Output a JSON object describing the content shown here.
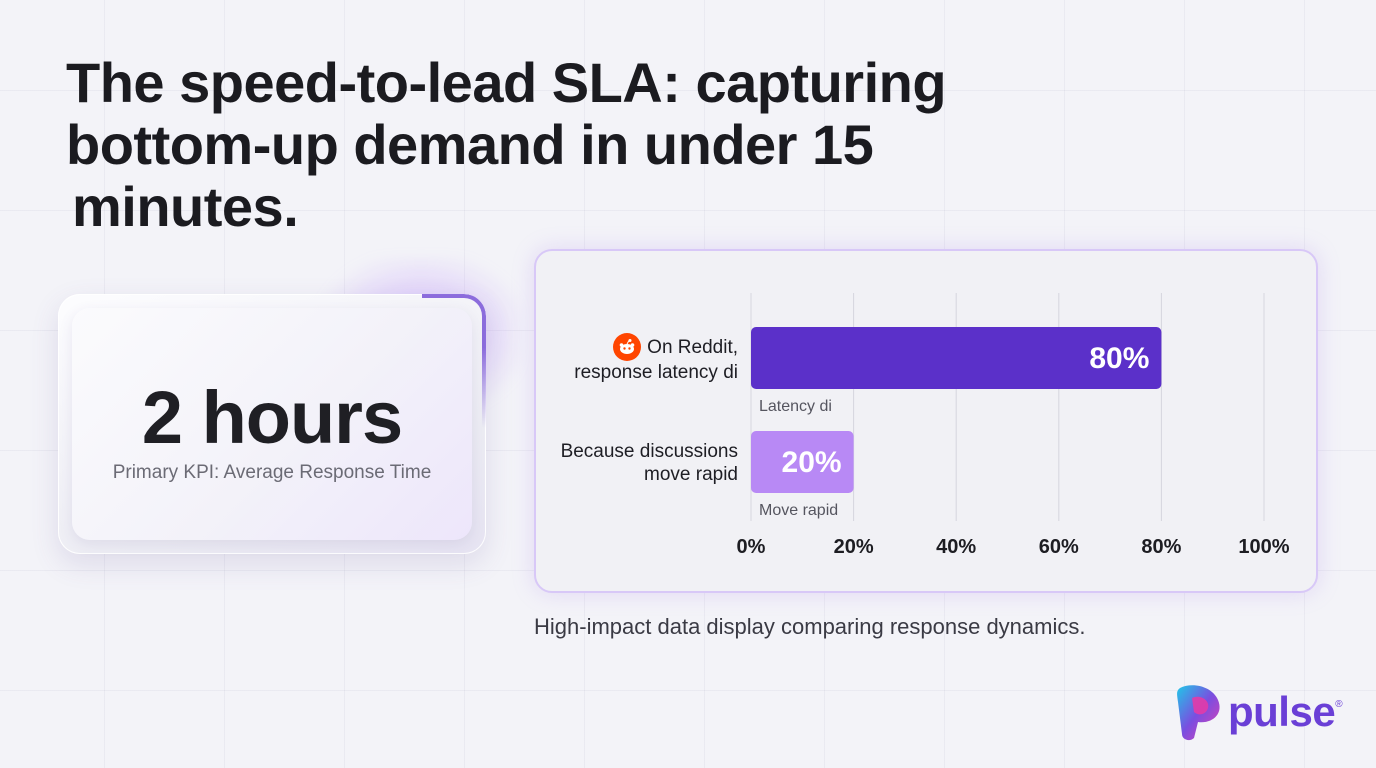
{
  "title": {
    "line1": "The speed-to-lead SLA: capturing",
    "line2": "bottom-up demand in under 15",
    "line3": "minutes."
  },
  "kpi": {
    "value": "2 hours",
    "label": "Primary KPI: Average Response Time"
  },
  "chart_data": {
    "type": "bar",
    "orientation": "horizontal",
    "categories": [
      "On Reddit, response latency di",
      "Because discussions move rapid"
    ],
    "category_lines": [
      [
        "On Reddit,",
        "response latency di"
      ],
      [
        "Because discussions",
        "move rapid"
      ]
    ],
    "values": [
      80,
      20
    ],
    "value_labels": [
      "80%",
      "20%"
    ],
    "sub_labels": [
      "Latency di",
      "Move rapid"
    ],
    "colors": [
      "#5b30c9",
      "#b889f5"
    ],
    "xlim": [
      0,
      100
    ],
    "xticks": [
      "0%",
      "20%",
      "40%",
      "60%",
      "80%",
      "100%"
    ],
    "grid": true,
    "icons": [
      "reddit-icon",
      ""
    ]
  },
  "caption": "High-impact data display comparing response dynamics.",
  "logo": {
    "text": "pulse",
    "mark": "®"
  }
}
